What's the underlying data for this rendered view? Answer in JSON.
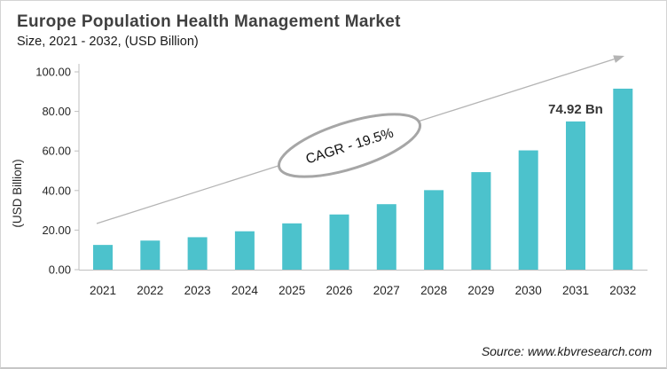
{
  "header": {
    "title": "Europe Population Health Management Market",
    "subtitle": "Size, 2021 - 2032, (USD Billion)"
  },
  "chart_data": {
    "type": "bar",
    "title": "Europe Population Health Management Market Size, 2021 - 2032, (USD Billion)",
    "categories": [
      "2021",
      "2022",
      "2023",
      "2024",
      "2025",
      "2026",
      "2027",
      "2028",
      "2029",
      "2030",
      "2031",
      "2032"
    ],
    "values": [
      12.5,
      14.7,
      16.4,
      19.4,
      23.4,
      27.9,
      33.1,
      40.2,
      49.3,
      60.3,
      74.92,
      91.5
    ],
    "xlabel": "",
    "ylabel": "(USD Billion)",
    "ylim": [
      0,
      100
    ],
    "ytick_step": 20,
    "ytick_decimals": 2,
    "grid": false,
    "legend": "none",
    "bar_color": "#4CC2CC",
    "annotation": {
      "text": "74.92 Bn",
      "category": "2031"
    },
    "cagr_label": "CAGR - 19.5%",
    "trend_arrow": {
      "present": true,
      "color": "#b4b4b4"
    }
  },
  "footer": {
    "source": "Source: www.kbvresearch.com"
  },
  "colors": {
    "axis": "#bfbfbf",
    "tick_text": "#262626",
    "ellipse_stroke": "#a6a6a6",
    "cagr_text": "#111111",
    "annotation_text": "#363636"
  }
}
